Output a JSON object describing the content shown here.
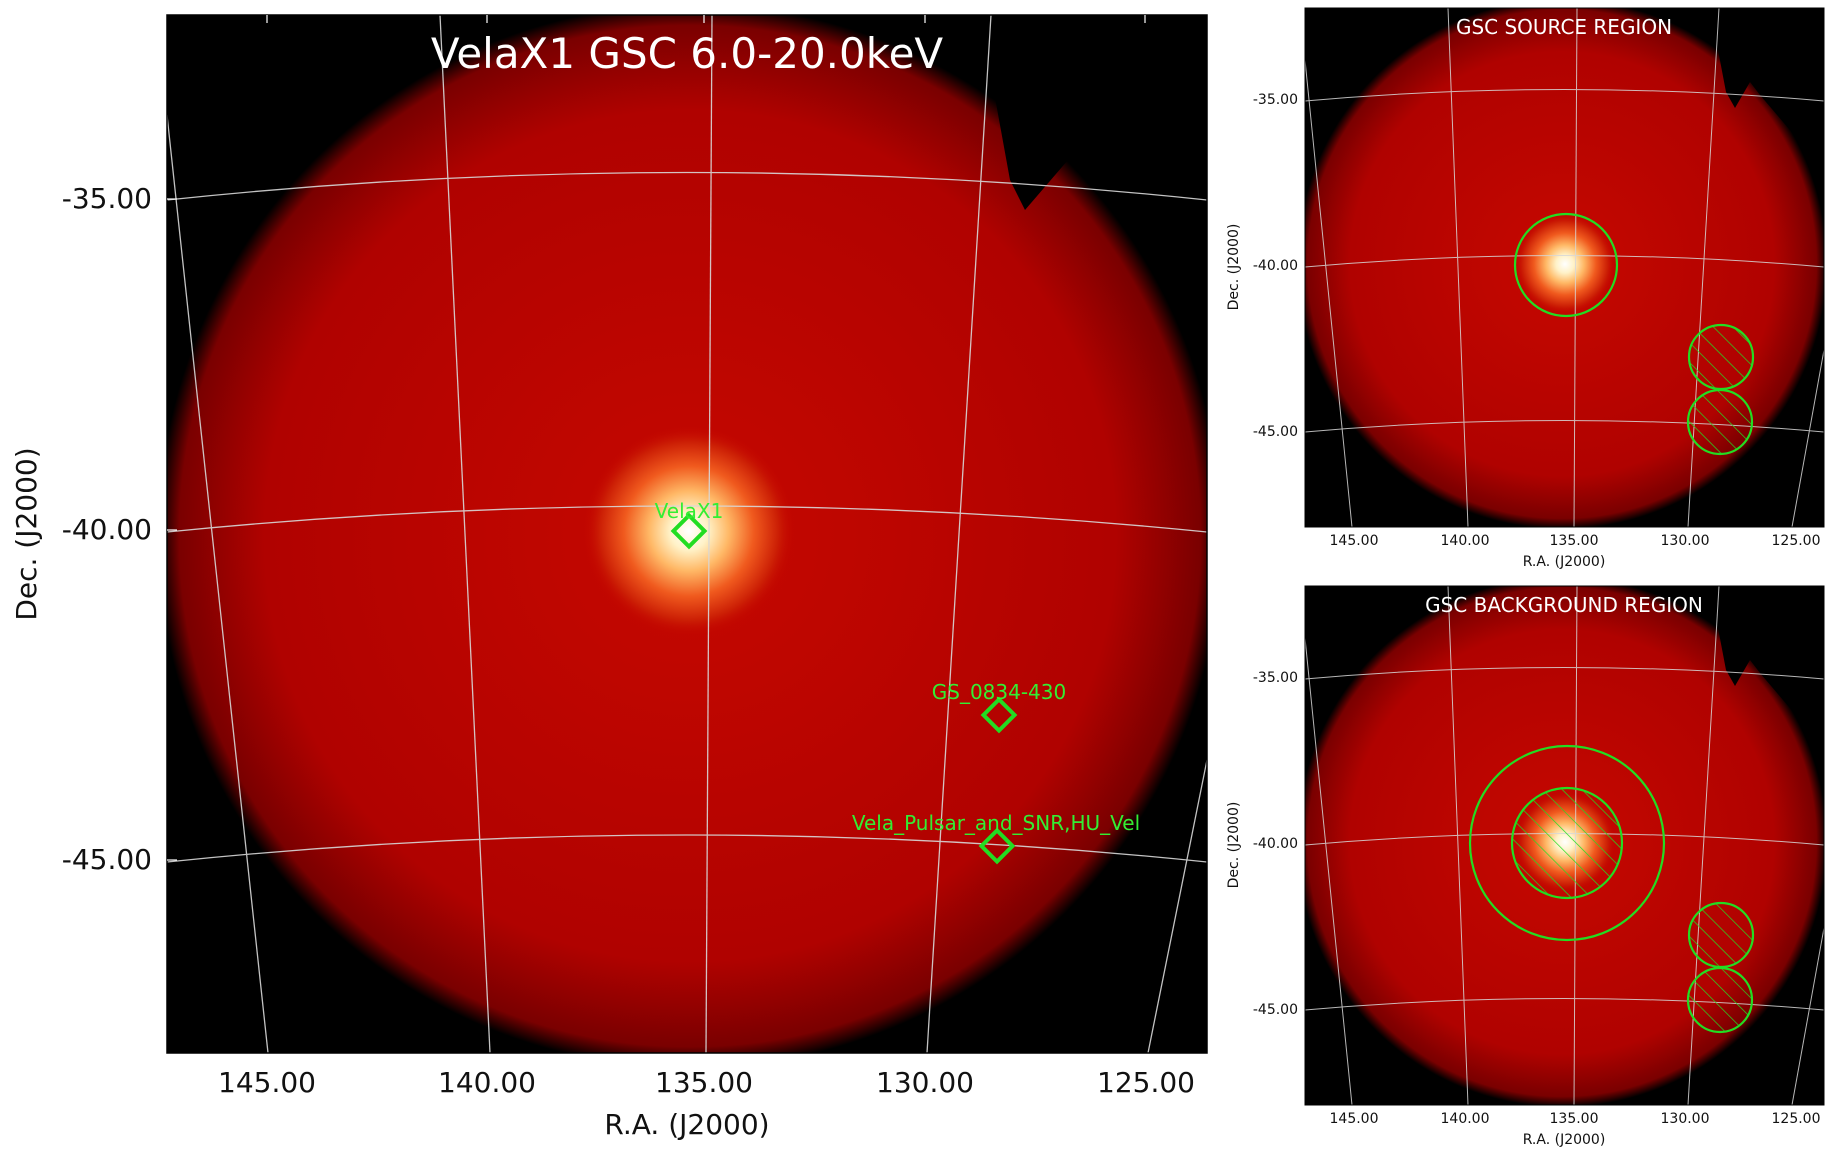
{
  "main_panel": {
    "title": "VelaX1 GSC 6.0-20.0keV",
    "xlabel": "R.A. (J2000)",
    "ylabel": "Dec. (J2000)",
    "xticks": [
      "145.00",
      "140.00",
      "135.00",
      "130.00",
      "125.00"
    ],
    "yticks": [
      "-35.00",
      "-40.00",
      "-45.00"
    ],
    "sources": [
      {
        "name": "VelaX1",
        "ra": 135.5,
        "dec": -40.0
      },
      {
        "name": "GS_0834-430",
        "ra": 128.4,
        "dec": -42.8
      },
      {
        "name": "Vela_Pulsar_and_SNR,HU_Vel",
        "ra": 128.4,
        "dec": -44.8
      }
    ]
  },
  "source_panel": {
    "title": "GSC SOURCE REGION",
    "xlabel": "R.A. (J2000)",
    "ylabel": "Dec. (J2000)",
    "xticks": [
      "145.00",
      "140.00",
      "135.00",
      "130.00",
      "125.00"
    ],
    "yticks": [
      "-35.00",
      "-40.00",
      "-45.00"
    ]
  },
  "background_panel": {
    "title": "GSC BACKGROUND REGION",
    "xlabel": "R.A. (J2000)",
    "ylabel": "Dec. (J2000)",
    "xticks": [
      "145.00",
      "140.00",
      "135.00",
      "130.00",
      "125.00"
    ],
    "yticks": [
      "-35.00",
      "-40.00",
      "-45.00"
    ]
  },
  "colors": {
    "region": "#22dd22",
    "label": "#33ee33",
    "sky_bright": "#ffffff",
    "sky_mid": "#c40400",
    "sky_dark": "#a00000",
    "background": "#000000",
    "grid": "#d8d8d8"
  }
}
